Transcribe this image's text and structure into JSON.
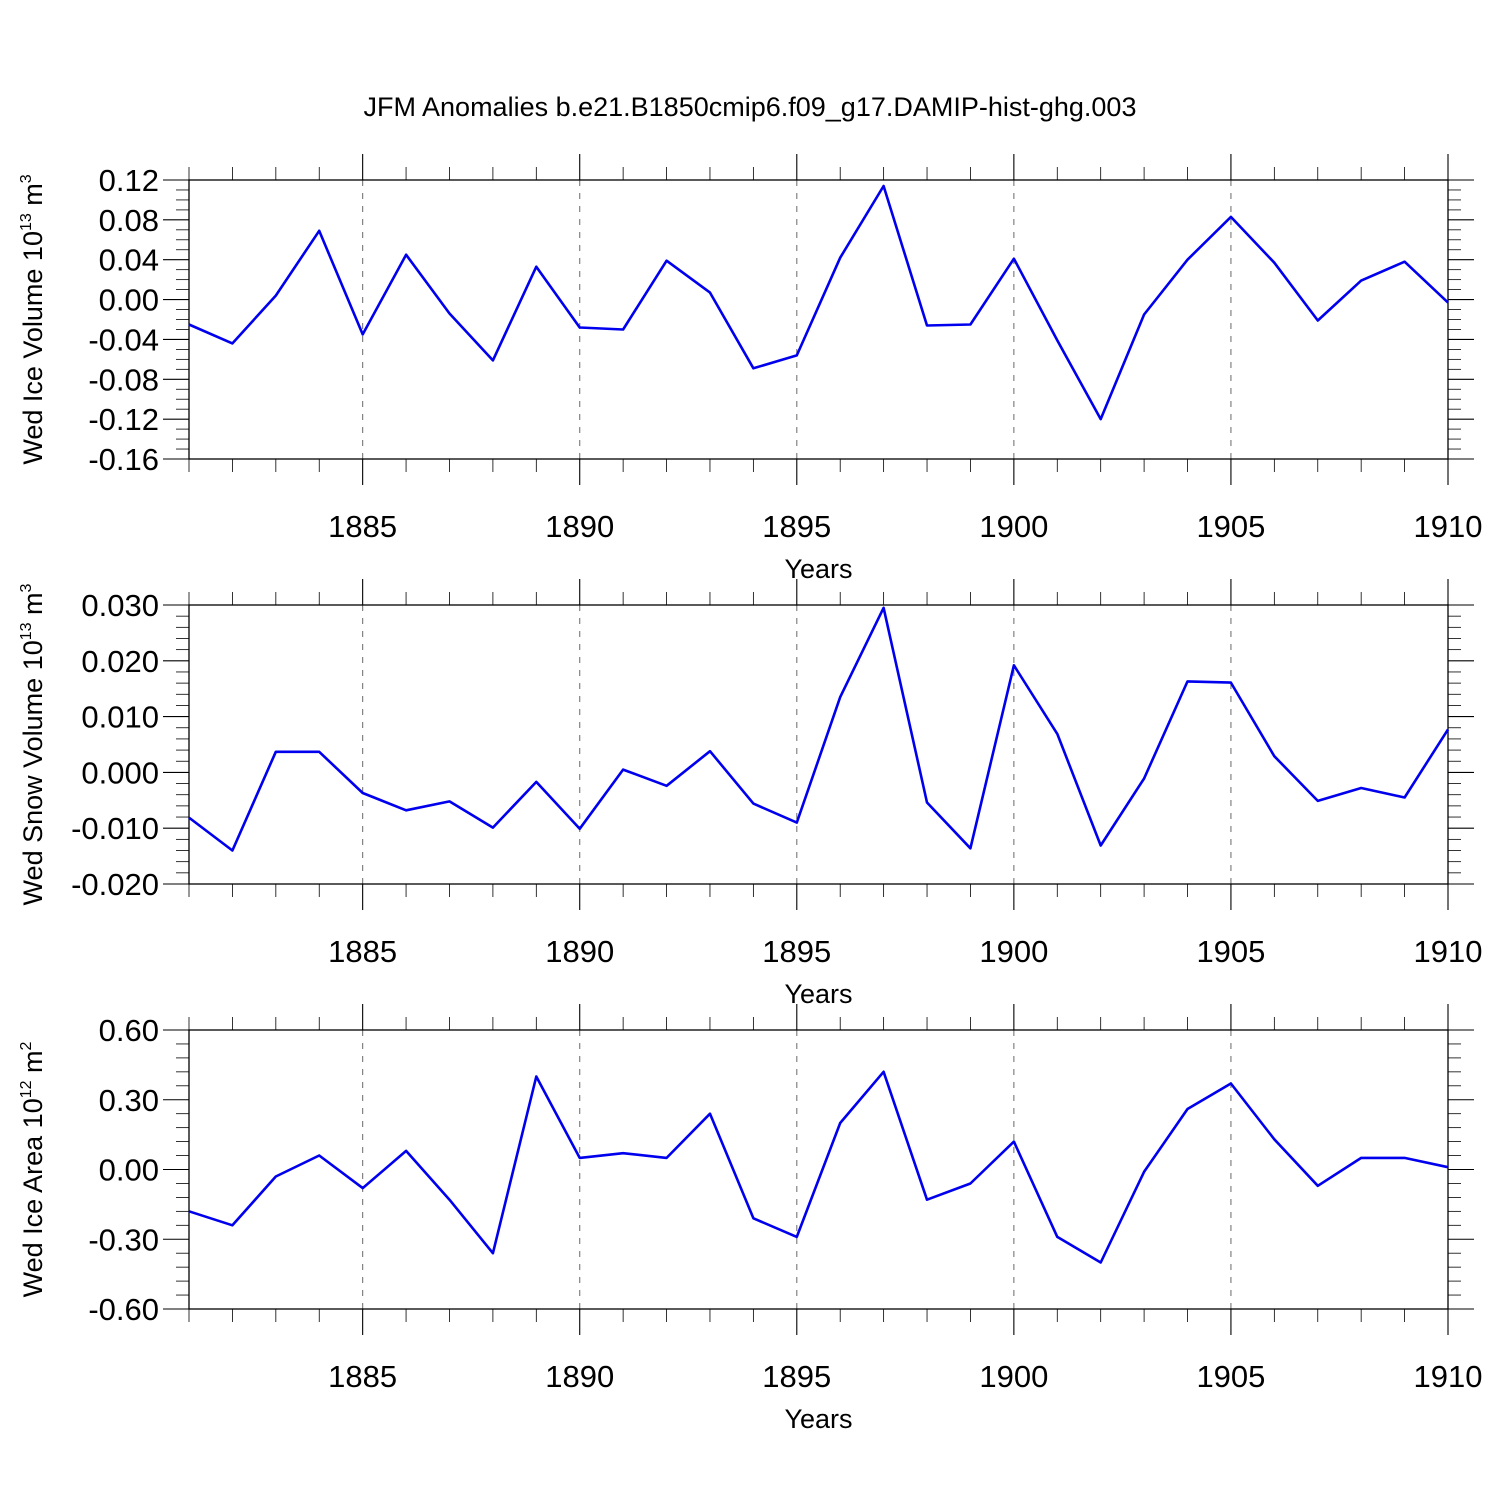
{
  "title": "JFM Anomalies b.e21.B1850cmip6.f09_g17.DAMIP-hist-ghg.003",
  "chart_data": [
    {
      "type": "line",
      "ylabel": {
        "text": "Wed Ice Volume 10",
        "exp": "13",
        "unit": " m",
        "unit_exp": "3"
      },
      "xlabel": "Years",
      "x": [
        1881,
        1882,
        1883,
        1884,
        1885,
        1886,
        1887,
        1888,
        1889,
        1890,
        1891,
        1892,
        1893,
        1894,
        1895,
        1896,
        1897,
        1898,
        1899,
        1900,
        1901,
        1902,
        1903,
        1904,
        1905,
        1906,
        1907,
        1908,
        1909,
        1910
      ],
      "values": [
        -0.025,
        -0.044,
        0.004,
        0.069,
        -0.035,
        0.045,
        -0.014,
        -0.061,
        0.033,
        -0.028,
        -0.03,
        0.039,
        0.007,
        -0.069,
        -0.056,
        0.042,
        0.114,
        -0.026,
        -0.025,
        0.041,
        -0.041,
        -0.12,
        -0.015,
        0.04,
        0.083,
        0.037,
        -0.021,
        0.019,
        0.038,
        -0.003
      ],
      "ylim": [
        -0.16,
        0.12
      ],
      "yticks": [
        "0.12",
        "0.08",
        "0.04",
        "0.00",
        "-0.04",
        "-0.08",
        "-0.12",
        "-0.16"
      ],
      "ytick_values": [
        0.12,
        0.08,
        0.04,
        0.0,
        -0.04,
        -0.08,
        -0.12,
        -0.16
      ],
      "xticks": [
        "1885",
        "1890",
        "1895",
        "1900",
        "1905",
        "1910"
      ]
    },
    {
      "type": "line",
      "ylabel": {
        "text": "Wed Snow Volume 10",
        "exp": "13",
        "unit": " m",
        "unit_exp": "3"
      },
      "xlabel": "Years",
      "x": [
        1881,
        1882,
        1883,
        1884,
        1885,
        1886,
        1887,
        1888,
        1889,
        1890,
        1891,
        1892,
        1893,
        1894,
        1895,
        1896,
        1897,
        1898,
        1899,
        1900,
        1901,
        1902,
        1903,
        1904,
        1905,
        1906,
        1907,
        1908,
        1909,
        1910
      ],
      "values": [
        -0.0081,
        -0.014,
        0.0037,
        0.0037,
        -0.0037,
        -0.0068,
        -0.0052,
        -0.0099,
        -0.0017,
        -0.0101,
        0.0005,
        -0.0024,
        0.0038,
        -0.0056,
        -0.009,
        0.0135,
        0.0295,
        -0.0054,
        -0.0136,
        0.0192,
        0.0069,
        -0.0131,
        -0.0011,
        0.0163,
        0.0161,
        0.0029,
        -0.0051,
        -0.0028,
        -0.0045,
        0.0077
      ],
      "ylim": [
        -0.02,
        0.03
      ],
      "yticks": [
        "0.030",
        "0.020",
        "0.010",
        "0.000",
        "-0.010",
        "-0.020"
      ],
      "ytick_values": [
        0.03,
        0.02,
        0.01,
        0.0,
        -0.01,
        -0.02
      ],
      "xticks": [
        "1885",
        "1890",
        "1895",
        "1900",
        "1905",
        "1910"
      ]
    },
    {
      "type": "line",
      "ylabel": {
        "text": "Wed Ice Area 10",
        "exp": "12",
        "unit": " m",
        "unit_exp": "2"
      },
      "xlabel": "Years",
      "x": [
        1881,
        1882,
        1883,
        1884,
        1885,
        1886,
        1887,
        1888,
        1889,
        1890,
        1891,
        1892,
        1893,
        1894,
        1895,
        1896,
        1897,
        1898,
        1899,
        1900,
        1901,
        1902,
        1903,
        1904,
        1905,
        1906,
        1907,
        1908,
        1909,
        1910
      ],
      "values": [
        -0.18,
        -0.24,
        -0.03,
        0.06,
        -0.08,
        0.08,
        -0.13,
        -0.36,
        0.4,
        0.05,
        0.07,
        0.05,
        0.24,
        -0.21,
        -0.29,
        0.2,
        0.42,
        -0.13,
        -0.06,
        0.12,
        -0.29,
        -0.4,
        -0.01,
        0.26,
        0.37,
        0.13,
        -0.07,
        0.05,
        0.05,
        0.01
      ],
      "ylim": [
        -0.6,
        0.6
      ],
      "yticks": [
        "0.60",
        "0.30",
        "0.00",
        "-0.30",
        "-0.60"
      ],
      "ytick_values": [
        0.6,
        0.3,
        0.0,
        -0.3,
        -0.6
      ],
      "xticks": [
        "1885",
        "1890",
        "1895",
        "1900",
        "1905",
        "1910"
      ]
    }
  ]
}
